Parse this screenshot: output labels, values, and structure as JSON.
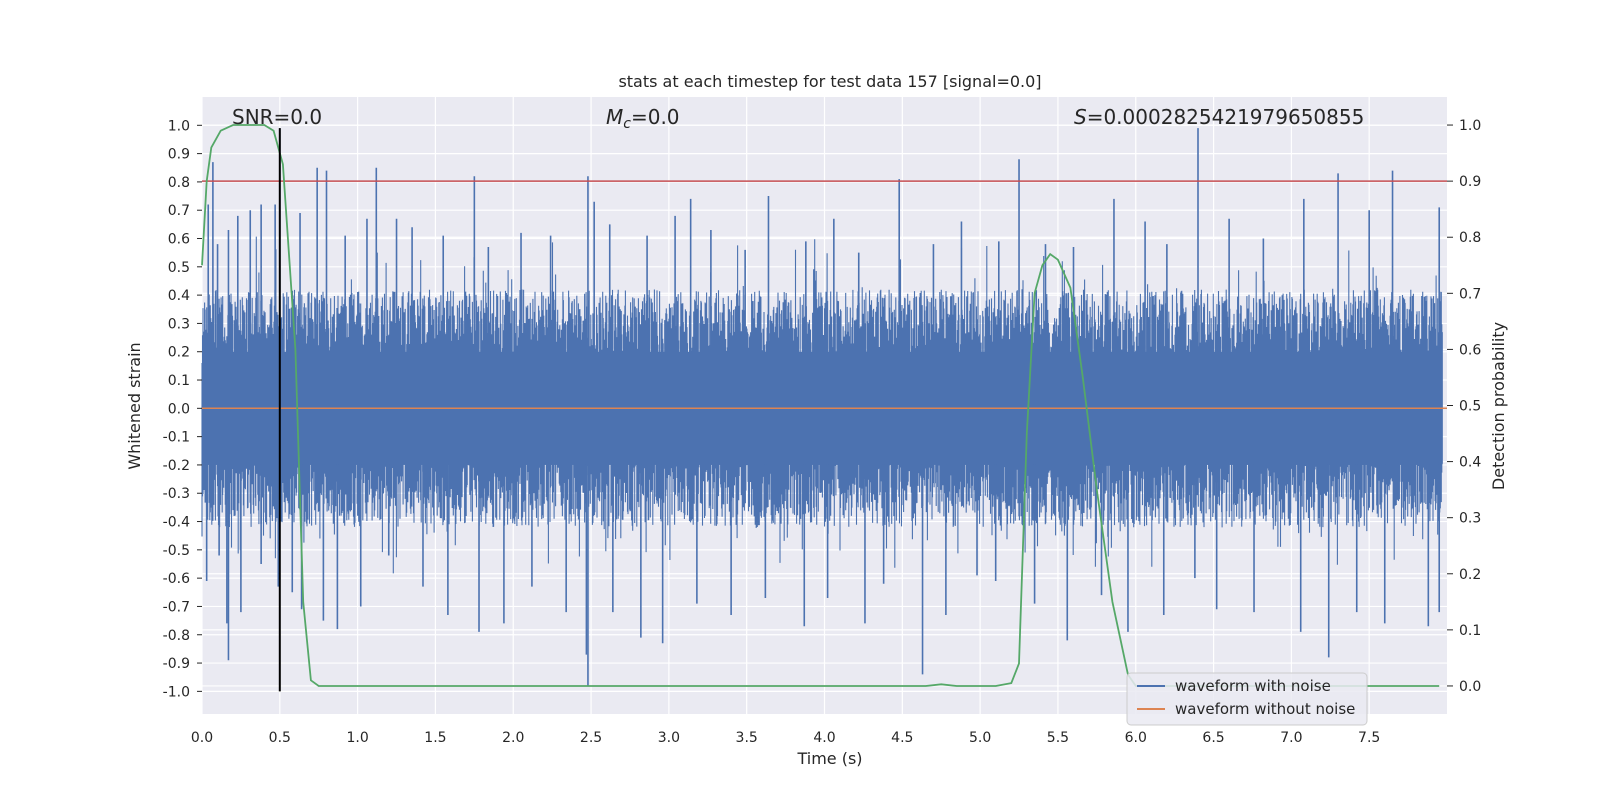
{
  "chart_data": {
    "type": "line",
    "title": "stats at each timestep for test data 157 [signal=0.0]",
    "xlabel": "Time (s)",
    "ylabel": "Whitened strain",
    "y2label": "Detection probability",
    "xlim": [
      0.0,
      8.0
    ],
    "ylim": [
      -1.08,
      1.1
    ],
    "y2lim": [
      -0.05,
      1.05
    ],
    "x_ticks": [
      "0.0",
      "0.5",
      "1.0",
      "1.5",
      "2.0",
      "2.5",
      "3.0",
      "3.5",
      "4.0",
      "4.5",
      "5.0",
      "5.5",
      "6.0",
      "6.5",
      "7.0",
      "7.5"
    ],
    "y_ticks": [
      "1.0",
      "0.9",
      "0.8",
      "0.7",
      "0.6",
      "0.5",
      "0.4",
      "0.3",
      "0.2",
      "0.1",
      "0.0",
      "-0.1",
      "-0.2",
      "-0.3",
      "-0.4",
      "-0.5",
      "-0.6",
      "-0.7",
      "-0.8",
      "-0.9",
      "-1.0"
    ],
    "y2_ticks": [
      "1.0",
      "0.9",
      "0.8",
      "0.7",
      "0.6",
      "0.5",
      "0.4",
      "0.3",
      "0.2",
      "0.1",
      "0.0"
    ],
    "grid": true,
    "legend_position": "bottom-right",
    "annotations": {
      "snr": "SNR=0.0",
      "mc_symbol": "M",
      "mc_sub": "c",
      "mc_value": "=0.0",
      "s_symbol": "S",
      "s_value": "=0.0002825421979650855"
    },
    "series": [
      {
        "name": "waveform with noise",
        "color": "#4c72b0",
        "axis": "left",
        "style": "dense noise (approx. ±0.4 typical, peaks ±0.9)",
        "upper_peaks": [
          [
            0.04,
            0.72
          ],
          [
            0.07,
            0.87
          ],
          [
            0.1,
            0.58
          ],
          [
            0.17,
            0.63
          ],
          [
            0.23,
            0.68
          ],
          [
            0.31,
            0.7
          ],
          [
            0.38,
            0.72
          ],
          [
            0.47,
            0.72
          ],
          [
            0.5,
            0.99
          ],
          [
            0.63,
            0.69
          ],
          [
            0.74,
            0.85
          ],
          [
            0.8,
            0.84
          ],
          [
            0.92,
            0.61
          ],
          [
            1.06,
            0.67
          ],
          [
            1.12,
            0.85
          ],
          [
            1.25,
            0.67
          ],
          [
            1.35,
            0.64
          ],
          [
            1.55,
            0.61
          ],
          [
            1.75,
            0.82
          ],
          [
            1.84,
            0.57
          ],
          [
            2.05,
            0.62
          ],
          [
            2.24,
            0.61
          ],
          [
            2.48,
            0.82
          ],
          [
            2.52,
            0.73
          ],
          [
            2.62,
            0.65
          ],
          [
            2.86,
            0.61
          ],
          [
            3.04,
            0.68
          ],
          [
            3.14,
            0.74
          ],
          [
            3.27,
            0.63
          ],
          [
            3.49,
            0.56
          ],
          [
            3.64,
            0.75
          ],
          [
            3.88,
            0.59
          ],
          [
            4.06,
            0.67
          ],
          [
            4.22,
            0.55
          ],
          [
            4.48,
            0.81
          ],
          [
            4.7,
            0.58
          ],
          [
            4.88,
            0.66
          ],
          [
            5.12,
            0.59
          ],
          [
            5.25,
            0.88
          ],
          [
            5.42,
            0.58
          ],
          [
            5.6,
            0.57
          ],
          [
            5.86,
            0.74
          ],
          [
            6.06,
            0.66
          ],
          [
            6.2,
            0.58
          ],
          [
            6.4,
            0.99
          ],
          [
            6.6,
            0.67
          ],
          [
            6.82,
            0.6
          ],
          [
            7.08,
            0.74
          ],
          [
            7.3,
            0.83
          ],
          [
            7.5,
            0.7
          ],
          [
            7.65,
            0.84
          ],
          [
            7.95,
            0.71
          ]
        ],
        "lower_peaks": [
          [
            0.03,
            -0.61
          ],
          [
            0.11,
            -0.52
          ],
          [
            0.16,
            -0.76
          ],
          [
            0.17,
            -0.89
          ],
          [
            0.25,
            -0.72
          ],
          [
            0.38,
            -0.55
          ],
          [
            0.49,
            -0.63
          ],
          [
            0.58,
            -0.65
          ],
          [
            0.64,
            -0.71
          ],
          [
            0.78,
            -0.75
          ],
          [
            0.87,
            -0.78
          ],
          [
            1.02,
            -0.7
          ],
          [
            1.2,
            -0.52
          ],
          [
            1.42,
            -0.63
          ],
          [
            1.58,
            -0.73
          ],
          [
            1.78,
            -0.79
          ],
          [
            1.94,
            -0.76
          ],
          [
            2.12,
            -0.63
          ],
          [
            2.34,
            -0.72
          ],
          [
            2.47,
            -0.87
          ],
          [
            2.48,
            -0.98
          ],
          [
            2.64,
            -0.72
          ],
          [
            2.82,
            -0.81
          ],
          [
            2.96,
            -0.83
          ],
          [
            3.18,
            -0.69
          ],
          [
            3.4,
            -0.73
          ],
          [
            3.62,
            -0.67
          ],
          [
            3.87,
            -0.77
          ],
          [
            4.02,
            -0.67
          ],
          [
            4.26,
            -0.76
          ],
          [
            4.38,
            -0.62
          ],
          [
            4.63,
            -0.94
          ],
          [
            4.78,
            -0.73
          ],
          [
            4.98,
            -0.59
          ],
          [
            5.1,
            -0.61
          ],
          [
            5.35,
            -0.69
          ],
          [
            5.56,
            -0.82
          ],
          [
            5.78,
            -0.66
          ],
          [
            5.95,
            -0.79
          ],
          [
            6.18,
            -0.73
          ],
          [
            6.38,
            -0.6
          ],
          [
            6.52,
            -0.71
          ],
          [
            6.76,
            -0.72
          ],
          [
            7.06,
            -0.79
          ],
          [
            7.24,
            -0.88
          ],
          [
            7.42,
            -0.72
          ],
          [
            7.6,
            -0.76
          ],
          [
            7.88,
            -0.77
          ],
          [
            7.95,
            -0.72
          ]
        ]
      },
      {
        "name": "waveform without noise",
        "color": "#dd8452",
        "axis": "left",
        "x": [
          0.0,
          8.0
        ],
        "y": [
          0.0,
          0.0
        ]
      },
      {
        "name": "detection probability",
        "color": "#55a868",
        "axis": "right",
        "x": [
          0.0,
          0.03,
          0.06,
          0.12,
          0.2,
          0.3,
          0.4,
          0.46,
          0.52,
          0.6,
          0.65,
          0.7,
          0.75,
          0.8,
          4.5,
          4.65,
          4.75,
          4.85,
          5.0,
          5.1,
          5.2,
          5.25,
          5.3,
          5.35,
          5.4,
          5.45,
          5.5,
          5.58,
          5.66,
          5.75,
          5.85,
          5.95,
          6.0,
          7.95
        ],
        "y": [
          0.75,
          0.9,
          0.96,
          0.99,
          1.0,
          1.0,
          1.0,
          0.99,
          0.93,
          0.6,
          0.15,
          0.01,
          0.0,
          0.0,
          0.0,
          0.0,
          0.003,
          0.0,
          0.0,
          0.0,
          0.005,
          0.04,
          0.45,
          0.7,
          0.75,
          0.77,
          0.76,
          0.71,
          0.55,
          0.35,
          0.15,
          0.02,
          0.0,
          0.0
        ]
      },
      {
        "name": "threshold",
        "color": "#c44e52",
        "axis": "right",
        "x": [
          0.0,
          8.0
        ],
        "y": [
          0.9,
          0.9
        ]
      },
      {
        "name": "marker",
        "color": "#000000",
        "axis": "left",
        "x": [
          0.5,
          0.5
        ],
        "y": [
          -1.0,
          0.99
        ]
      }
    ],
    "legend": [
      "waveform with noise",
      "waveform without noise"
    ]
  }
}
